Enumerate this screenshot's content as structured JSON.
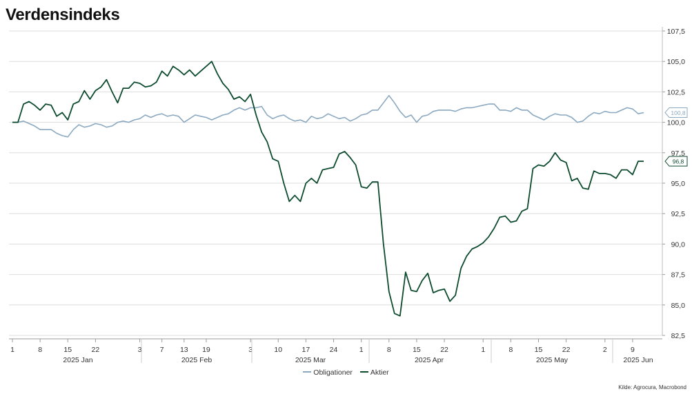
{
  "title": "Verdensindeks",
  "source": "Kilde: Agrocura, Macrobond",
  "colors": {
    "bonds": "#8aa8c0",
    "stocks": "#0c4a2e",
    "grid": "#dddddd"
  },
  "chart_data": {
    "type": "line",
    "title": "Verdensindeks",
    "ylim": [
      82.5,
      107.5
    ],
    "y_ticks": [
      "107,5",
      "105,0",
      "102,5",
      "100,0",
      "97,5",
      "95,0",
      "92,5",
      "90,0",
      "87,5",
      "85,0",
      "82,5"
    ],
    "grid": true,
    "legend_position": "bottom",
    "x_tick_labels": [
      "1",
      "8",
      "15",
      "22",
      "3",
      "7",
      "13",
      "19",
      "3",
      "10",
      "17",
      "24",
      "1",
      "8",
      "15",
      "22",
      "1",
      "8",
      "15",
      "22",
      "2",
      "9"
    ],
    "x_month_labels": [
      "2025 Jan",
      "2025 Feb",
      "2025 Mar",
      "2025 Apr",
      "2025 May",
      "2025 Jun"
    ],
    "end_labels": {
      "bonds": "100,8",
      "stocks": "96,8"
    },
    "series": [
      {
        "name": "Obligationer",
        "values": [
          100.0,
          100.0,
          100.1,
          99.9,
          99.7,
          99.4,
          99.4,
          99.4,
          99.1,
          98.9,
          98.8,
          99.4,
          99.8,
          99.6,
          99.7,
          99.9,
          99.8,
          99.6,
          99.7,
          100.0,
          100.1,
          100.0,
          100.2,
          100.3,
          100.6,
          100.4,
          100.6,
          100.7,
          100.5,
          100.6,
          100.5,
          100.0,
          100.3,
          100.6,
          100.5,
          100.4,
          100.2,
          100.4,
          100.6,
          100.7,
          101.0,
          101.2,
          101.0,
          101.2,
          101.2,
          101.3,
          100.6,
          100.3,
          100.5,
          100.6,
          100.3,
          100.1,
          100.2,
          100.0,
          100.5,
          100.3,
          100.4,
          100.7,
          100.5,
          100.3,
          100.4,
          100.1,
          100.3,
          100.6,
          100.7,
          101.0,
          101.0,
          101.6,
          102.2,
          101.6,
          100.9,
          100.4,
          100.6,
          100.0,
          100.5,
          100.6,
          100.9,
          101.0,
          101.0,
          101.0,
          100.9,
          101.1,
          101.2,
          101.2,
          101.3,
          101.4,
          101.5,
          101.5,
          101.0,
          101.0,
          100.9,
          101.2,
          101.0,
          101.0,
          100.6,
          100.4,
          100.2,
          100.5,
          100.7,
          100.6,
          100.6,
          100.4,
          100.0,
          100.1,
          100.5,
          100.8,
          100.7,
          100.9,
          100.8,
          100.8,
          101.0,
          101.2,
          101.1,
          100.7,
          100.8
        ]
      },
      {
        "name": "Aktier",
        "values": [
          100.0,
          100.0,
          101.5,
          101.7,
          101.4,
          101.0,
          101.5,
          101.4,
          100.5,
          100.8,
          100.2,
          101.5,
          101.7,
          102.6,
          101.9,
          102.6,
          102.9,
          103.5,
          102.5,
          101.6,
          102.8,
          102.8,
          103.3,
          103.2,
          102.9,
          103.0,
          103.3,
          104.2,
          103.8,
          104.6,
          104.3,
          103.9,
          104.3,
          103.8,
          104.2,
          104.6,
          105.0,
          104.0,
          103.2,
          102.7,
          101.9,
          102.1,
          101.7,
          102.3,
          100.6,
          99.2,
          98.4,
          97.0,
          96.8,
          95.0,
          93.5,
          94.0,
          93.5,
          95.0,
          95.4,
          95.0,
          96.1,
          96.2,
          96.3,
          97.4,
          97.6,
          97.1,
          96.5,
          94.7,
          94.6,
          95.1,
          95.1,
          90.0,
          86.1,
          84.3,
          84.1,
          87.7,
          86.2,
          86.1,
          87.0,
          87.6,
          86.0,
          86.2,
          86.3,
          85.3,
          85.8,
          88.0,
          89.0,
          89.6,
          89.8,
          90.1,
          90.6,
          91.3,
          92.2,
          92.3,
          91.8,
          91.9,
          92.7,
          92.9,
          96.2,
          96.5,
          96.4,
          96.8,
          97.5,
          96.9,
          96.7,
          95.2,
          95.4,
          94.6,
          94.5,
          96.0,
          95.8,
          95.8,
          95.7,
          95.4,
          96.1,
          96.1,
          95.7,
          96.8,
          96.8
        ]
      }
    ]
  }
}
